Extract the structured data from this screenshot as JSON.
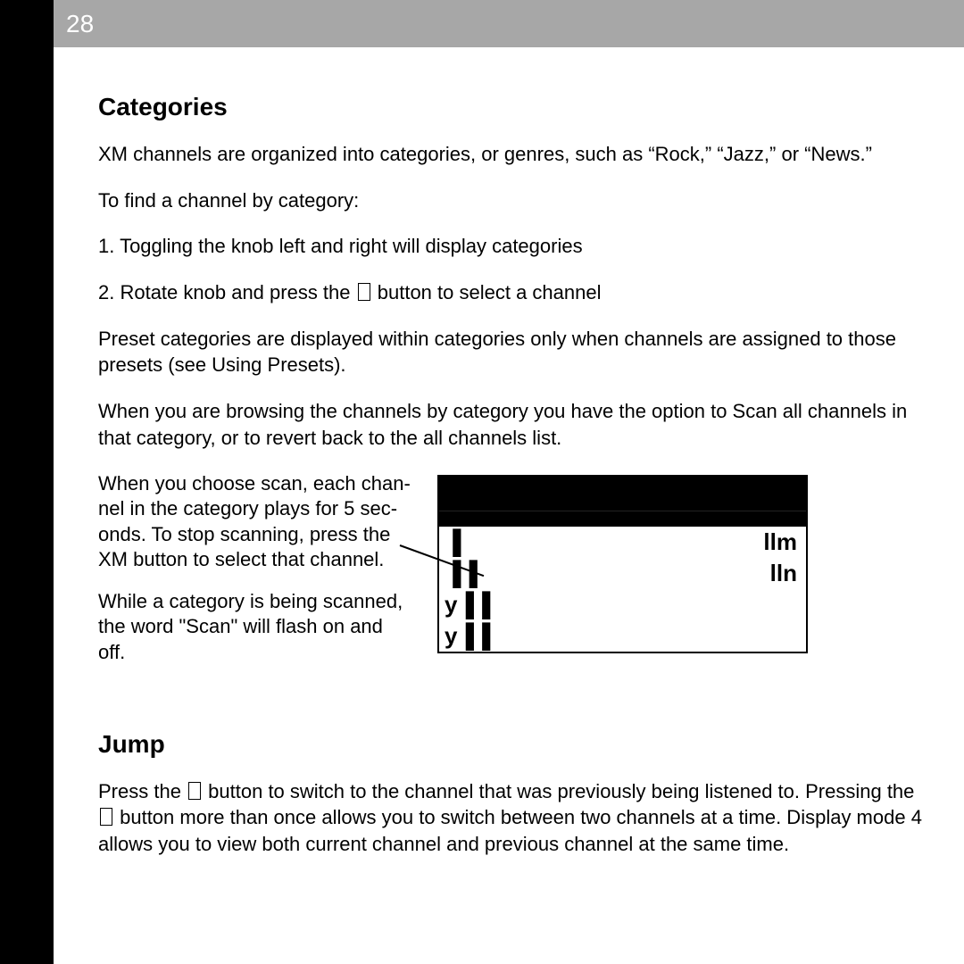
{
  "page_number": "28",
  "categories": {
    "heading": "Categories",
    "p1": "XM channels are organized into categories, or genres, such as “Rock,” “Jazz,” or “News.”",
    "p2": "To find a channel by category:",
    "step1": "1. Toggling the knob left and right will display categories",
    "step2_a": "2. Rotate knob and press the ",
    "step2_b": " button to select a channel",
    "p3": "Preset categories are displayed within categories only when channels are assigned to those presets (see Using Presets).",
    "p4": "When  you are browsing the channels by category you have the option to Scan all channels in that category, or to revert back to the all channels list.",
    "scan1": "When you choose scan, each chan-nel in the category plays for 5 sec-onds. To stop scanning, press the XM button to select that channel.",
    "scan2": "While a category is being scanned, the word \"Scan\" will flash on and off."
  },
  "device": {
    "row1_left": "▐",
    "row1_right": "llm",
    "row2_left": "▐▐",
    "row2_right": "lln",
    "row3_left": "y▐▐",
    "row3_right": "",
    "row4_left": "y▐▐",
    "row4_right": ""
  },
  "jump": {
    "heading": "Jump",
    "p_a": "Press the ",
    "p_b": " button to switch to the channel that was previously being listened to.  Pressing the ",
    "p_c": " button more than once allows you to switch between two channels at a time.  Display mode 4 allows you to view both current channel and previous channel at the same time."
  }
}
